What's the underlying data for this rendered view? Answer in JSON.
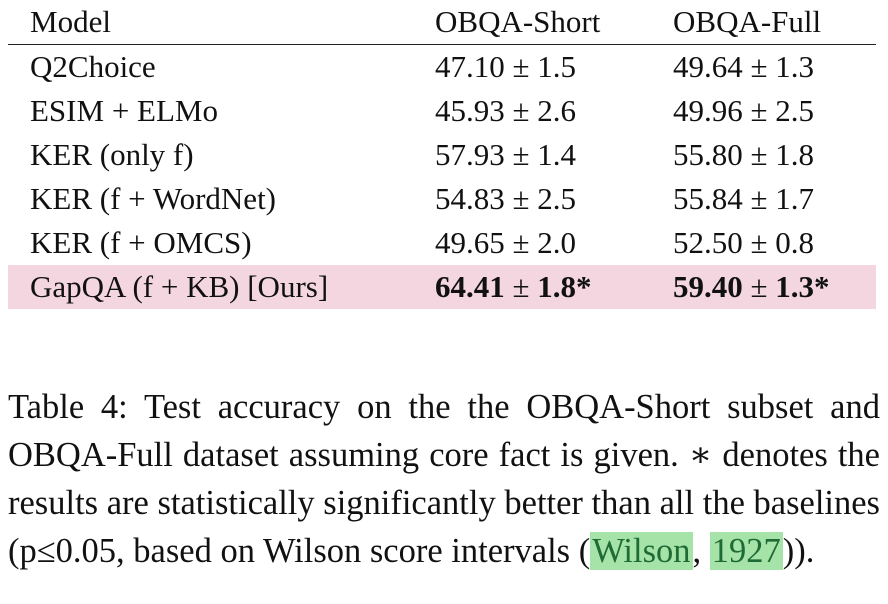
{
  "table": {
    "headers": [
      "Model",
      "OBQA-Short",
      "OBQA-Full"
    ],
    "rows": [
      {
        "model": "Q2Choice",
        "short": "47.10 ± 1.5",
        "full": "49.64 ± 1.3"
      },
      {
        "model": "ESIM + ELMo",
        "short": "45.93 ± 2.6",
        "full": "49.96 ± 2.5"
      },
      {
        "model": "KER (only f)",
        "short": "57.93 ± 1.4",
        "full": "55.80 ± 1.8"
      },
      {
        "model": "KER (f + WordNet)",
        "short": "54.83 ± 2.5",
        "full": "55.84 ± 1.7"
      },
      {
        "model": "KER (f + OMCS)",
        "short": "49.65 ± 2.0",
        "full": "52.50 ± 0.8"
      }
    ],
    "highlight_row": {
      "model": "GapQA (f + KB) [Ours]",
      "short_mean": "64.41",
      "short_pm": " ± ",
      "short_sd": "1.8*",
      "full_mean": "59.40",
      "full_pm": " ± ",
      "full_sd": "1.3*"
    },
    "highlight_color": "#f4d6e1"
  },
  "caption": {
    "text_before": "Table 4: Test accuracy on the the OBQA-Short subset and OBQA-Full dataset assuming core fact is given. ∗ denotes the results are statistically significantly better than all the baselines (p≤0.05, based on Wilson score intervals (",
    "cite_author": "Wilson",
    "cite_sep": ", ",
    "cite_year": "1927",
    "text_after": "))."
  },
  "citation_highlight_color": "#a6e3a8"
}
